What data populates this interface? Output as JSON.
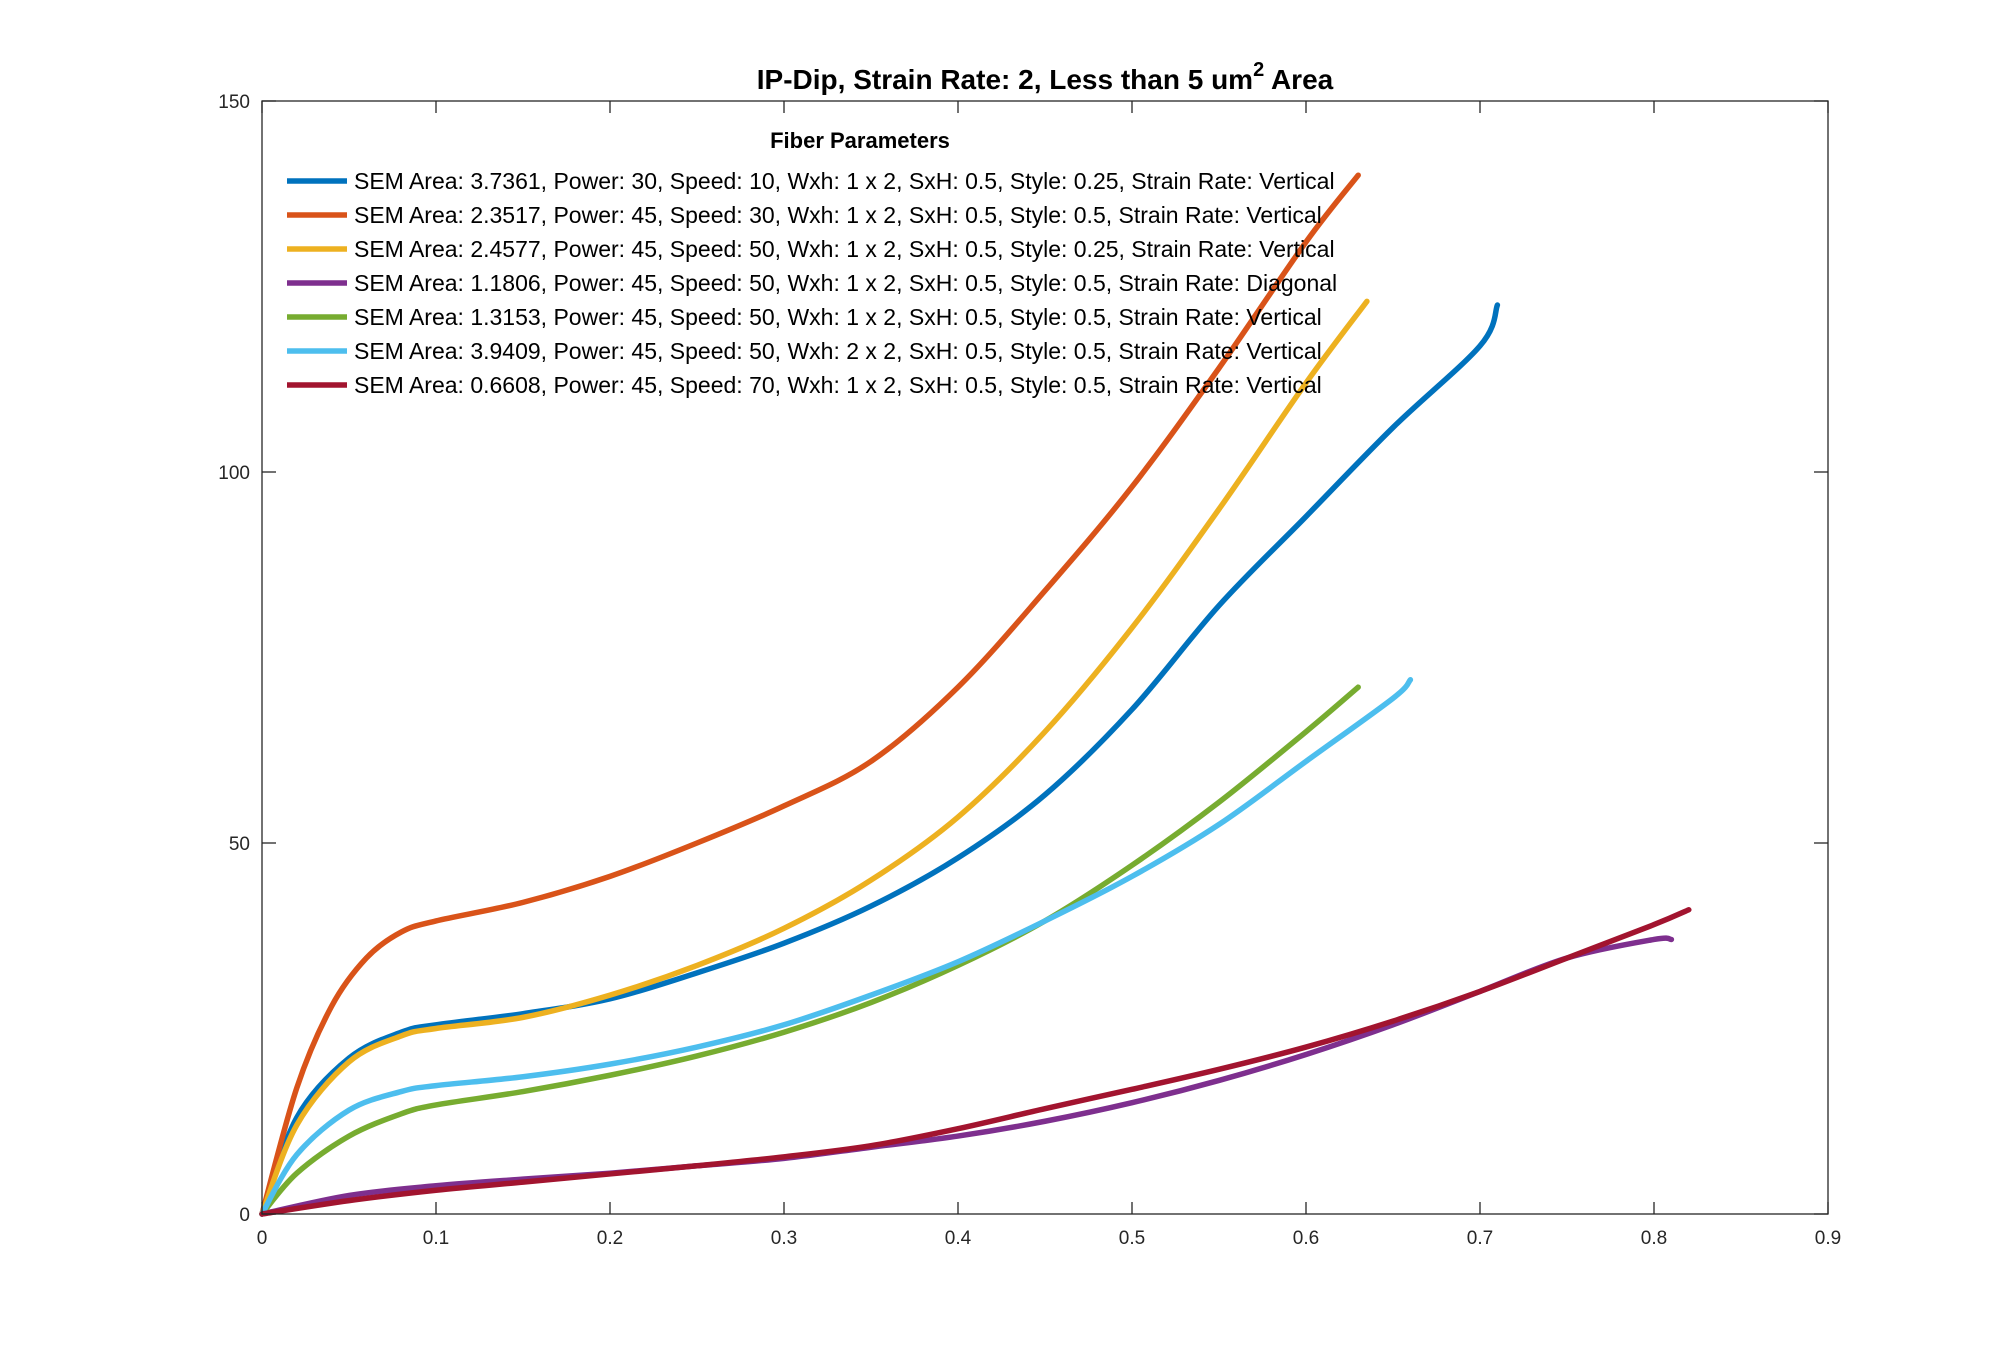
{
  "chart_data": {
    "type": "line",
    "title": {
      "prefix": "IP-Dip, Strain Rate: 2, Less than 5 um",
      "superscript": "2",
      "suffix": " Area"
    },
    "xlabel": "",
    "ylabel": "",
    "xlim": [
      0,
      0.9
    ],
    "ylim": [
      0,
      150
    ],
    "x_ticks": [
      0,
      0.1,
      0.2,
      0.3,
      0.4,
      0.5,
      0.6,
      0.7,
      0.8,
      0.9
    ],
    "x_tick_labels": [
      "0",
      "0.1",
      "0.2",
      "0.3",
      "0.4",
      "0.5",
      "0.6",
      "0.7",
      "0.8",
      "0.9"
    ],
    "y_ticks": [
      0,
      50,
      100,
      150
    ],
    "y_tick_labels": [
      "0",
      "50",
      "100",
      "150"
    ],
    "grid": false,
    "legend": {
      "title": "Fiber Parameters",
      "placement": "top-left"
    },
    "series": [
      {
        "name": "SEM Area: 3.7361, Power: 30, Speed: 10, Wxh: 1 x 2, SxH: 0.5, Style: 0.25, Strain Rate: Vertical",
        "color": "#0072BD",
        "x": [
          0,
          0.02,
          0.05,
          0.08,
          0.1,
          0.15,
          0.2,
          0.25,
          0.3,
          0.35,
          0.4,
          0.45,
          0.5,
          0.55,
          0.6,
          0.65,
          0.7,
          0.71
        ],
        "y": [
          0,
          13,
          21,
          24.5,
          25.5,
          27,
          29,
          32.5,
          36.5,
          41.5,
          48,
          56.5,
          68,
          82,
          94,
          106,
          117,
          122.5
        ]
      },
      {
        "name": "SEM Area: 2.3517, Power: 45, Speed: 30, Wxh: 1 x 2, SxH: 0.5, Style: 0.5, Strain Rate: Vertical",
        "color": "#D95319",
        "x": [
          0,
          0.02,
          0.04,
          0.06,
          0.08,
          0.1,
          0.15,
          0.2,
          0.25,
          0.3,
          0.35,
          0.4,
          0.45,
          0.5,
          0.55,
          0.6,
          0.63
        ],
        "y": [
          0,
          17,
          28,
          34.5,
          38,
          39.5,
          42,
          45.5,
          50,
          55,
          61,
          71,
          84,
          98,
          114,
          131,
          140
        ]
      },
      {
        "name": "SEM Area: 2.4577, Power: 45, Speed: 50, Wxh: 1 x 2, SxH: 0.5, Style: 0.25, Strain Rate: Vertical",
        "color": "#EDB120",
        "x": [
          0,
          0.02,
          0.05,
          0.08,
          0.1,
          0.15,
          0.2,
          0.25,
          0.3,
          0.35,
          0.4,
          0.45,
          0.5,
          0.55,
          0.6,
          0.635
        ],
        "y": [
          0,
          12,
          20.5,
          24,
          25,
          26.5,
          29.5,
          33.5,
          38.5,
          45,
          53.5,
          65,
          79,
          95,
          112,
          123
        ]
      },
      {
        "name": "SEM Area: 1.1806, Power: 45, Speed: 50, Wxh: 1 x 2, SxH: 0.5, Style: 0.5, Strain Rate: Diagonal",
        "color": "#7E2F8E",
        "x": [
          0,
          0.05,
          0.1,
          0.15,
          0.2,
          0.25,
          0.3,
          0.35,
          0.4,
          0.45,
          0.5,
          0.55,
          0.6,
          0.65,
          0.7,
          0.75,
          0.8,
          0.81
        ],
        "y": [
          0,
          2.5,
          3.8,
          4.7,
          5.5,
          6.5,
          7.5,
          9,
          10.5,
          12.5,
          15,
          18,
          21.5,
          25.5,
          30,
          34.5,
          37,
          37
        ]
      },
      {
        "name": "SEM Area: 1.3153, Power: 45, Speed: 50, Wxh: 1 x 2, SxH: 0.5, Style: 0.5, Strain Rate: Vertical",
        "color": "#77AC30",
        "x": [
          0,
          0.02,
          0.05,
          0.08,
          0.1,
          0.15,
          0.2,
          0.25,
          0.3,
          0.35,
          0.4,
          0.45,
          0.5,
          0.55,
          0.6,
          0.63
        ],
        "y": [
          0,
          5.5,
          10.5,
          13.5,
          14.7,
          16.5,
          18.7,
          21.3,
          24.5,
          28.5,
          33.5,
          39.5,
          47,
          55.5,
          65,
          71
        ]
      },
      {
        "name": "SEM Area: 3.9409, Power: 45, Speed: 50, Wxh: 2 x 2, SxH: 0.5, Style: 0.5, Strain Rate: Vertical",
        "color": "#4DBEEE",
        "x": [
          0,
          0.02,
          0.05,
          0.08,
          0.1,
          0.15,
          0.2,
          0.25,
          0.3,
          0.35,
          0.4,
          0.45,
          0.5,
          0.55,
          0.6,
          0.65,
          0.66
        ],
        "y": [
          0,
          8,
          14,
          16.5,
          17.3,
          18.5,
          20.2,
          22.5,
          25.5,
          29.5,
          34,
          39.5,
          45.5,
          52.5,
          61,
          69.5,
          72
        ]
      },
      {
        "name": "SEM Area: 0.6608, Power: 45, Speed: 70, Wxh: 1 x 2, SxH: 0.5, Style: 0.5, Strain Rate: Vertical",
        "color": "#A2142F",
        "x": [
          0,
          0.05,
          0.1,
          0.15,
          0.2,
          0.25,
          0.3,
          0.35,
          0.4,
          0.45,
          0.5,
          0.55,
          0.6,
          0.65,
          0.7,
          0.75,
          0.8,
          0.82
        ],
        "y": [
          0,
          1.8,
          3.2,
          4.3,
          5.4,
          6.5,
          7.7,
          9.2,
          11.5,
          14.2,
          16.8,
          19.5,
          22.5,
          26,
          30,
          34.5,
          39,
          41
        ]
      }
    ]
  }
}
